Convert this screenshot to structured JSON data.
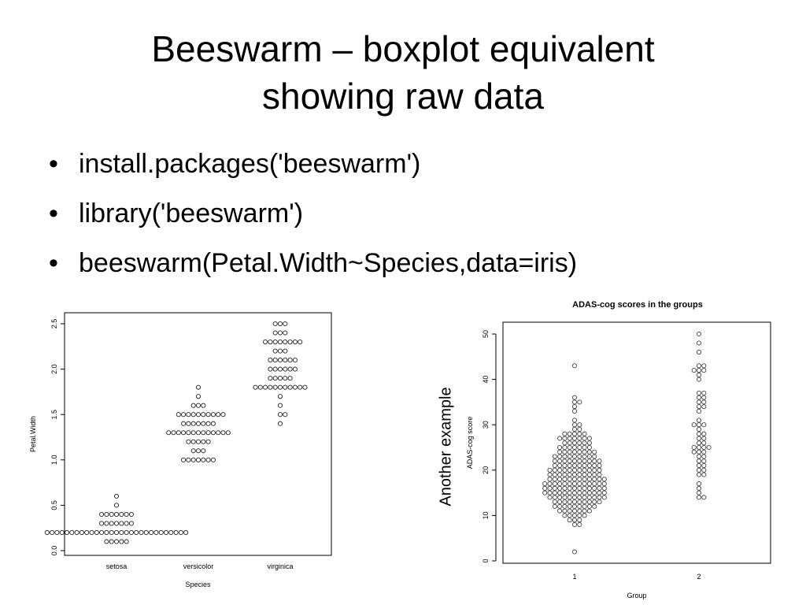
{
  "slide": {
    "title_lines": [
      "Beeswarm – boxplot equivalent",
      "showing raw data"
    ],
    "bullet_symbol": "•",
    "bullets": [
      "install.packages('beeswarm')",
      "library('beeswarm')",
      "beeswarm(Petal.Width~Species,data=iris)"
    ],
    "side_note": "Another example"
  },
  "chart_data": [
    {
      "type": "scatter",
      "style": "beeswarm",
      "title": "",
      "xlabel": "Species",
      "ylabel": "Petal.Width",
      "categories": [
        "setosa",
        "versicolor",
        "virginica"
      ],
      "ylim": [
        0,
        2.5
      ],
      "yticks": [
        "0.0",
        "0.5",
        "1.0",
        "1.5",
        "2.0",
        "2.5"
      ],
      "grid": false,
      "series": [
        {
          "values": [
            0.1,
            0.1,
            0.1,
            0.1,
            0.1,
            0.2,
            0.2,
            0.2,
            0.2,
            0.2,
            0.2,
            0.2,
            0.2,
            0.2,
            0.2,
            0.2,
            0.2,
            0.2,
            0.2,
            0.2,
            0.2,
            0.2,
            0.2,
            0.2,
            0.2,
            0.2,
            0.2,
            0.2,
            0.2,
            0.2,
            0.2,
            0.2,
            0.2,
            0.2,
            0.3,
            0.3,
            0.3,
            0.3,
            0.3,
            0.3,
            0.3,
            0.4,
            0.4,
            0.4,
            0.4,
            0.4,
            0.4,
            0.4,
            0.5,
            0.6
          ]
        },
        {
          "values": [
            1.0,
            1.0,
            1.0,
            1.0,
            1.0,
            1.0,
            1.0,
            1.1,
            1.1,
            1.1,
            1.2,
            1.2,
            1.2,
            1.2,
            1.2,
            1.3,
            1.3,
            1.3,
            1.3,
            1.3,
            1.3,
            1.3,
            1.3,
            1.3,
            1.3,
            1.3,
            1.3,
            1.3,
            1.4,
            1.4,
            1.4,
            1.4,
            1.4,
            1.4,
            1.4,
            1.5,
            1.5,
            1.5,
            1.5,
            1.5,
            1.5,
            1.5,
            1.5,
            1.5,
            1.5,
            1.6,
            1.6,
            1.6,
            1.7,
            1.8
          ]
        },
        {
          "values": [
            1.4,
            1.5,
            1.5,
            1.6,
            1.7,
            1.8,
            1.8,
            1.8,
            1.8,
            1.8,
            1.8,
            1.8,
            1.8,
            1.8,
            1.8,
            1.8,
            1.9,
            1.9,
            1.9,
            1.9,
            1.9,
            2.0,
            2.0,
            2.0,
            2.0,
            2.0,
            2.0,
            2.1,
            2.1,
            2.1,
            2.1,
            2.1,
            2.1,
            2.2,
            2.2,
            2.2,
            2.3,
            2.3,
            2.3,
            2.3,
            2.3,
            2.3,
            2.3,
            2.3,
            2.4,
            2.4,
            2.4,
            2.5,
            2.5,
            2.5
          ]
        }
      ]
    },
    {
      "type": "scatter",
      "style": "beeswarm",
      "title": "ADAS-cog scores in the groups",
      "xlabel": "Group",
      "ylabel": "ADAS-cog score",
      "categories": [
        "1",
        "2"
      ],
      "ylim": [
        0,
        50
      ],
      "yticks": [
        "0",
        "10",
        "20",
        "30",
        "40",
        "50"
      ],
      "grid": false,
      "series": [
        {
          "values": [
            2,
            8,
            8,
            9,
            9,
            9,
            10,
            10,
            10,
            10,
            10,
            11,
            11,
            11,
            11,
            11,
            11,
            11,
            12,
            12,
            12,
            12,
            12,
            12,
            12,
            12,
            12,
            13,
            13,
            13,
            13,
            13,
            13,
            13,
            13,
            13,
            13,
            14,
            14,
            14,
            14,
            14,
            14,
            14,
            14,
            14,
            14,
            14,
            14,
            15,
            15,
            15,
            15,
            15,
            15,
            15,
            15,
            15,
            15,
            15,
            15,
            15,
            16,
            16,
            16,
            16,
            16,
            16,
            16,
            16,
            16,
            16,
            16,
            16,
            16,
            17,
            17,
            17,
            17,
            17,
            17,
            17,
            17,
            17,
            17,
            17,
            17,
            17,
            18,
            18,
            18,
            18,
            18,
            18,
            18,
            18,
            18,
            18,
            18,
            18,
            19,
            19,
            19,
            19,
            19,
            19,
            19,
            19,
            19,
            19,
            19,
            20,
            20,
            20,
            20,
            20,
            20,
            20,
            20,
            20,
            20,
            20,
            21,
            21,
            21,
            21,
            21,
            21,
            21,
            21,
            21,
            21,
            22,
            22,
            22,
            22,
            22,
            22,
            22,
            22,
            22,
            22,
            23,
            23,
            23,
            23,
            23,
            23,
            23,
            23,
            23,
            24,
            24,
            24,
            24,
            24,
            24,
            24,
            24,
            25,
            25,
            25,
            25,
            25,
            25,
            25,
            26,
            26,
            26,
            26,
            26,
            26,
            27,
            27,
            27,
            27,
            27,
            27,
            27,
            28,
            28,
            28,
            28,
            28,
            29,
            29,
            30,
            30,
            31,
            33,
            34,
            35,
            35,
            36,
            43
          ]
        },
        {
          "values": [
            14,
            14,
            15,
            16,
            17,
            19,
            19,
            20,
            20,
            21,
            21,
            22,
            22,
            23,
            23,
            24,
            24,
            24,
            25,
            25,
            25,
            25,
            26,
            26,
            27,
            27,
            28,
            28,
            29,
            30,
            30,
            30,
            31,
            33,
            34,
            34,
            35,
            35,
            36,
            36,
            37,
            37,
            40,
            41,
            42,
            42,
            42,
            43,
            43,
            46,
            48,
            50
          ]
        }
      ]
    }
  ]
}
